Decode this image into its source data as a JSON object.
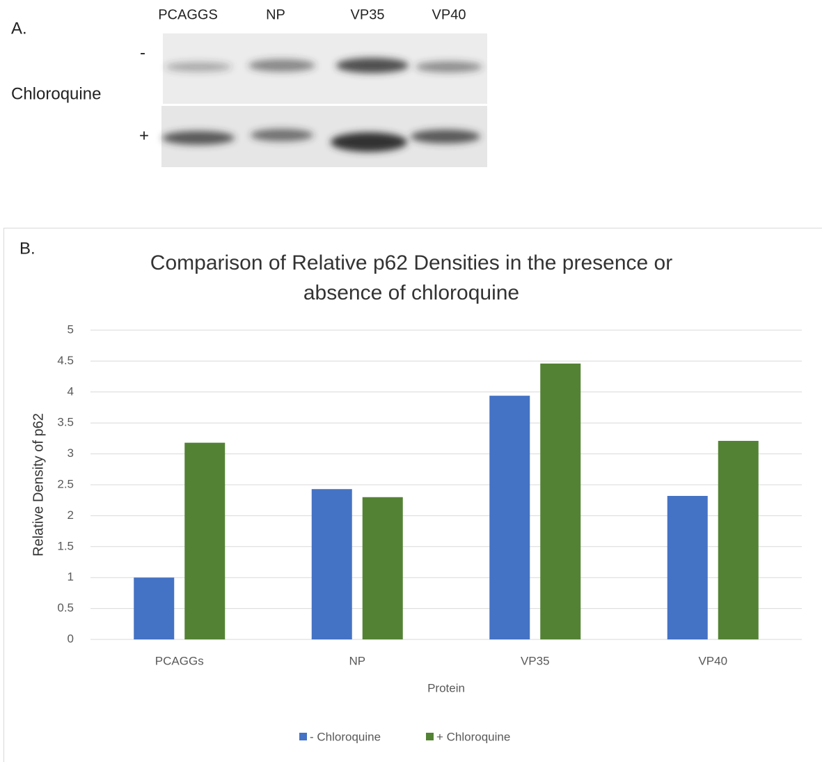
{
  "panel_a": {
    "label": "A.",
    "lanes": [
      "PCAGGS",
      "NP",
      "VP35",
      "VP40"
    ],
    "minus": "-",
    "plus": "+",
    "treatment": "Chloroquine"
  },
  "panel_b_label": "B.",
  "chart_data": {
    "type": "bar",
    "title": "Comparison of Relative p62 Densities in the presence or absence of chloroquine",
    "x_label": "Protein",
    "y_label": "Relative Density of p62",
    "categories": [
      "PCAGGs",
      "NP",
      "VP35",
      "VP40"
    ],
    "series": [
      {
        "name": "- Chloroquine",
        "color": "#4472c4",
        "values": [
          1.0,
          2.43,
          3.94,
          2.32
        ]
      },
      {
        "name": "+ Chloroquine",
        "color": "#548235",
        "values": [
          3.18,
          2.3,
          4.46,
          3.21
        ]
      }
    ],
    "ylim": [
      0,
      5
    ],
    "yticks": [
      0,
      0.5,
      1,
      1.5,
      2,
      2.5,
      3,
      3.5,
      4,
      4.5,
      5
    ],
    "grid": true,
    "legend": "bottom"
  }
}
